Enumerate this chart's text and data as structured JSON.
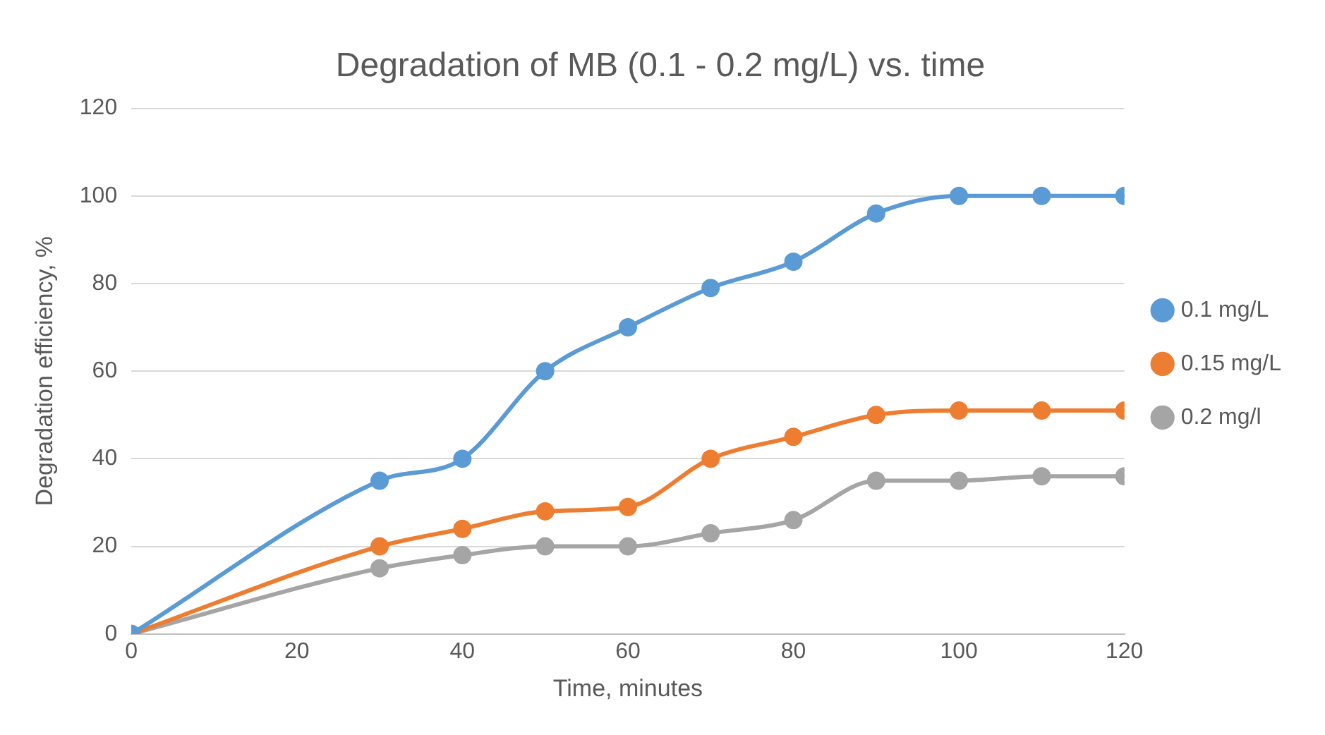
{
  "chart_data": {
    "type": "line",
    "title": "Degradation of MB (0.1 - 0.2 mg/L) vs. time",
    "xlabel": "Time, minutes",
    "ylabel": "Degradation efficiency, %",
    "x": [
      0,
      30,
      40,
      50,
      60,
      70,
      80,
      90,
      100,
      110,
      120
    ],
    "series": [
      {
        "name": "0.1 mg/L",
        "color": "#5b9bd5",
        "values": [
          0,
          35,
          40,
          60,
          70,
          79,
          85,
          96,
          100,
          100,
          100
        ]
      },
      {
        "name": "0.15 mg/L",
        "color": "#ed7d31",
        "values": [
          0,
          20,
          24,
          28,
          29,
          40,
          45,
          50,
          51,
          51,
          51
        ]
      },
      {
        "name": "0.2 mg/l",
        "color": "#a5a5a5",
        "values": [
          0,
          15,
          18,
          20,
          20,
          23,
          26,
          35,
          35,
          36,
          36
        ]
      }
    ],
    "xlim": [
      0,
      120
    ],
    "xticks": [
      0,
      20,
      40,
      60,
      80,
      100,
      120
    ],
    "ylim": [
      0,
      120
    ],
    "yticks": [
      0,
      20,
      40,
      60,
      80,
      100,
      120
    ],
    "grid": "y",
    "legend": "right",
    "marker": "circle",
    "line_style": "solid"
  }
}
